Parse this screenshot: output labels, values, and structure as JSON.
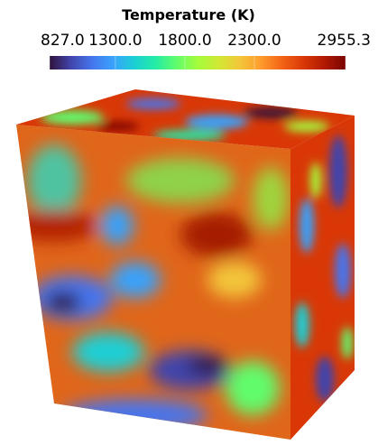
{
  "colorbar": {
    "title": "Temperature (K)",
    "range": [
      827.0,
      2955.3
    ],
    "ticks": [
      {
        "value": 827.0,
        "label": "827.0"
      },
      {
        "value": 1300.0,
        "label": "1300.0"
      },
      {
        "value": 1800.0,
        "label": "1800.0"
      },
      {
        "value": 2300.0,
        "label": "2300.0"
      },
      {
        "value": 2955.3,
        "label": "2955.3"
      }
    ],
    "colors": [
      "#30123b",
      "#4145ab",
      "#4675ed",
      "#39a2fc",
      "#1bcfd4",
      "#24eca6",
      "#61fc6c",
      "#a4fc3b",
      "#d1e834",
      "#f3c63a",
      "#fe9b2d",
      "#f36315",
      "#d93806",
      "#b11901",
      "#7a0403"
    ]
  }
}
